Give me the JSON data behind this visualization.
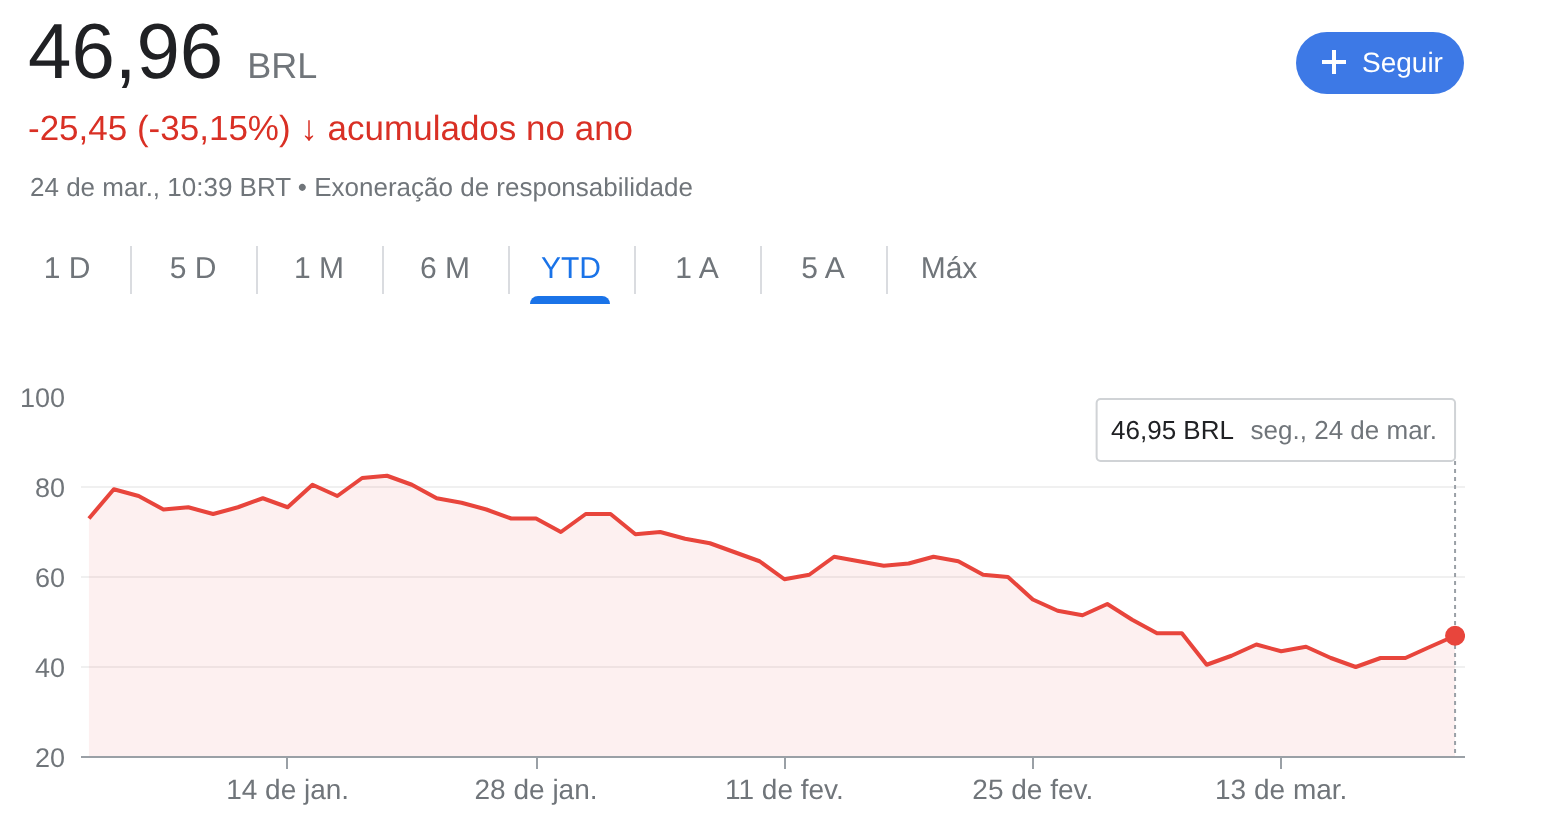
{
  "chart_data": {
    "type": "area",
    "title": "46,96",
    "subtitle": "-25,45 (-35,15%) ↓ acumulados no ano",
    "annotations": [
      "BRL",
      "24 de mar., 10:39 BRT • Exoneração de responsabilidade",
      "1 D",
      "5 D",
      "1 M",
      "6 M",
      "YTD",
      "1 A",
      "5 A",
      "Máx",
      "Seguir",
      "46,95 BRL",
      "seg., 24 de mar."
    ],
    "categories": [
      null,
      null,
      null,
      null,
      null,
      null,
      null,
      null,
      "14 de jan.",
      null,
      null,
      null,
      null,
      null,
      null,
      null,
      null,
      null,
      "28 de jan.",
      null,
      null,
      null,
      null,
      null,
      null,
      null,
      null,
      null,
      "11 de fev.",
      null,
      null,
      null,
      null,
      null,
      null,
      null,
      null,
      null,
      "25 de fev.",
      null,
      null,
      null,
      null,
      null,
      null,
      null,
      null,
      null,
      "13 de mar.",
      null,
      null,
      null,
      null,
      null,
      null,
      null
    ],
    "values": [
      73,
      79.5,
      78,
      75,
      75.5,
      74,
      75.5,
      77.5,
      75.5,
      80.5,
      78,
      82,
      82.5,
      80.5,
      77.5,
      76.5,
      75,
      73,
      73,
      70,
      74,
      74,
      69.5,
      70,
      68.5,
      67.5,
      65.5,
      63.5,
      59.5,
      60.5,
      64.5,
      63.5,
      62.5,
      63,
      64.5,
      63.5,
      60.5,
      60,
      55,
      52.5,
      51.5,
      54,
      50.5,
      47.5,
      47.5,
      40.5,
      42.5,
      45,
      43.5,
      44.5,
      42,
      40,
      42,
      42,
      44.5,
      46.95
    ],
    "color": "#e8453c",
    "ylim": [
      20,
      100
    ],
    "yticks": [
      20,
      40,
      60,
      80,
      100
    ],
    "grid": "y"
  }
}
